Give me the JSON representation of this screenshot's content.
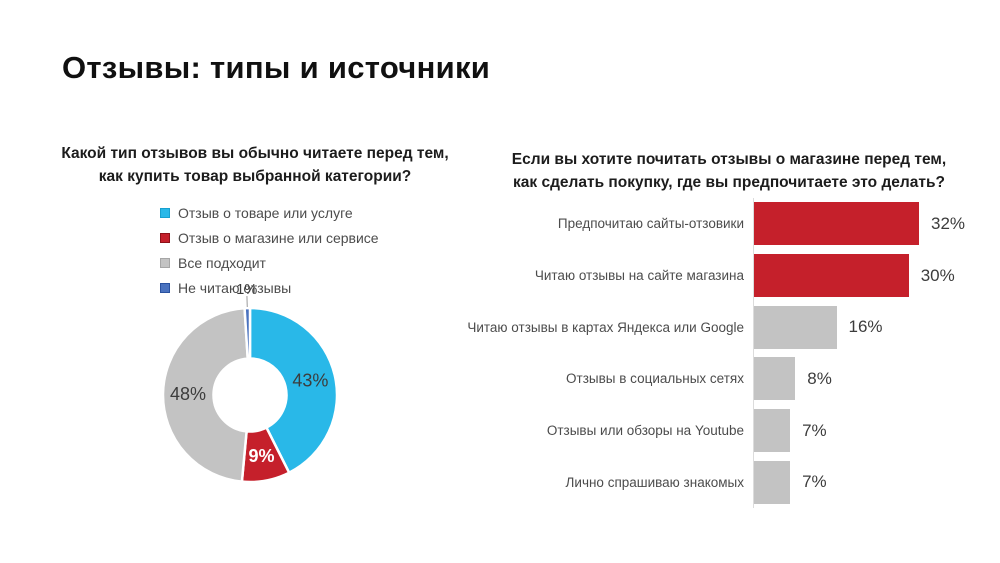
{
  "slide": {
    "title": "Отзывы: типы и источники"
  },
  "palette": {
    "cyan": "#29b8e8",
    "red": "#c5202b",
    "gray": "#c3c3c3",
    "blue": "#4a72bf",
    "axis_line": "#dcdcdc",
    "label_text": "#4c4c4c",
    "value_text": "#3c3c3c"
  },
  "chart_data": [
    {
      "type": "pie",
      "subtype": "donut",
      "title": "Какой тип отзывов вы обычно читаете перед тем, как купить товар выбранной категории?",
      "title_lines": [
        "Какой тип отзывов вы обычно читаете перед тем,",
        "как купить товар выбранной категории?"
      ],
      "unit": "%",
      "legend_position": "top-left",
      "slices": [
        {
          "label": "Отзыв о товаре или услуге",
          "value": 43,
          "value_label": "43%",
          "color": "#29b8e8",
          "swatch_border": "#17a0cf",
          "label_style": "inside-dark"
        },
        {
          "label": "Отзыв о магазине или сервисе",
          "value": 9,
          "value_label": "9%",
          "color": "#c5202b",
          "swatch_border": "#8e1219",
          "label_style": "inside-white"
        },
        {
          "label": "Все подходит",
          "value": 48,
          "value_label": "48%",
          "color": "#c3c3c3",
          "swatch_border": "#a6a6a6",
          "label_style": "inside-dark"
        },
        {
          "label": "Не читаю отзывы",
          "value": 1,
          "value_label": "1%",
          "color": "#4a72bf",
          "swatch_border": "#2a52a0",
          "label_style": "outside"
        }
      ]
    },
    {
      "type": "bar",
      "orientation": "horizontal",
      "title": "Если вы хотите почитать отзывы о магазине перед тем, как сделать покупку, где вы предпочитаете это делать?",
      "title_lines": [
        "Если вы хотите почитать отзывы о магазине перед тем,",
        "как сделать покупку, где вы предпочитаете это делать?"
      ],
      "unit": "%",
      "value_axis_range": [
        0,
        100
      ],
      "bars": [
        {
          "label": "Предпочитаю сайты-отзовики",
          "value": 32,
          "value_label": "32%",
          "color": "#c5202b"
        },
        {
          "label": "Читаю отзывы на сайте магазина",
          "value": 30,
          "value_label": "30%",
          "color": "#c5202b"
        },
        {
          "label": "Читаю отзывы в картах Яндекса или Google",
          "value": 16,
          "value_label": "16%",
          "color": "#c3c3c3"
        },
        {
          "label": "Отзывы в социальных сетях",
          "value": 8,
          "value_label": "8%",
          "color": "#c3c3c3"
        },
        {
          "label": "Отзывы или обзоры на Youtube",
          "value": 7,
          "value_label": "7%",
          "color": "#c3c3c3"
        },
        {
          "label": "Лично спрашиваю знакомых",
          "value": 7,
          "value_label": "7%",
          "color": "#c3c3c3"
        }
      ]
    }
  ]
}
